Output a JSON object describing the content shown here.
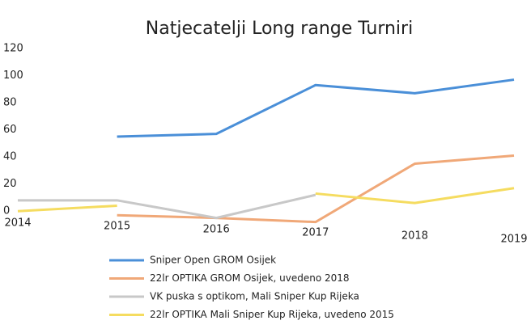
{
  "chart_data": {
    "type": "line",
    "title": "Natjecatelji Long range Turniri",
    "categories": [
      "2014",
      "2015",
      "2016",
      "2017",
      "2018",
      "2019"
    ],
    "series": [
      {
        "name": "Sniper Open GROM Osijek",
        "color": "#4a8fd8",
        "values": [
          null,
          55,
          57,
          93,
          87,
          97
        ]
      },
      {
        "name": "22lr OPTIKA GROM Osijek, uvedeno 2018",
        "color": "#f0a878",
        "values": [
          null,
          -3,
          -5,
          -8,
          35,
          41
        ]
      },
      {
        "name": "VK puska s optikom, Mali Sniper Kup Rijeka",
        "color": "#c8c8c8",
        "values": [
          8,
          8,
          -5,
          12,
          null,
          null
        ]
      },
      {
        "name": "22lr OPTIKA Mali Sniper Kup Rijeka, uvedeno 2015",
        "color": "#f5dc60",
        "values": [
          0,
          4,
          null,
          13,
          6,
          17
        ]
      }
    ],
    "ylim": [
      -10,
      120
    ],
    "yticks": [
      0,
      20,
      40,
      60,
      80,
      100,
      120
    ],
    "grid": false
  }
}
